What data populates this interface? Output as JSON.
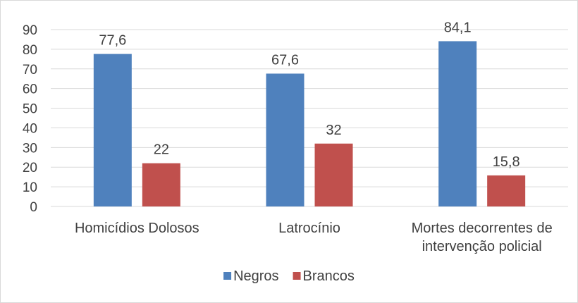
{
  "chart_data": {
    "type": "bar",
    "categories": [
      [
        "Homicídios Dolosos"
      ],
      [
        "Latrocínio"
      ],
      [
        "Mortes decorrentes de",
        "intervenção policial"
      ]
    ],
    "series": [
      {
        "name": "Negros",
        "values": [
          77.6,
          67.6,
          84.1
        ],
        "labels": [
          "77,6",
          "67,6",
          "84,1"
        ],
        "color": "#4f81bd"
      },
      {
        "name": "Brancos",
        "values": [
          22,
          32,
          15.8
        ],
        "labels": [
          "22",
          "32",
          "15,8"
        ],
        "color": "#c0504d"
      }
    ],
    "ylim": [
      0,
      90
    ],
    "yticks": [
      0,
      10,
      20,
      30,
      40,
      50,
      60,
      70,
      80,
      90
    ],
    "grid": true,
    "legend_position": "bottom"
  }
}
